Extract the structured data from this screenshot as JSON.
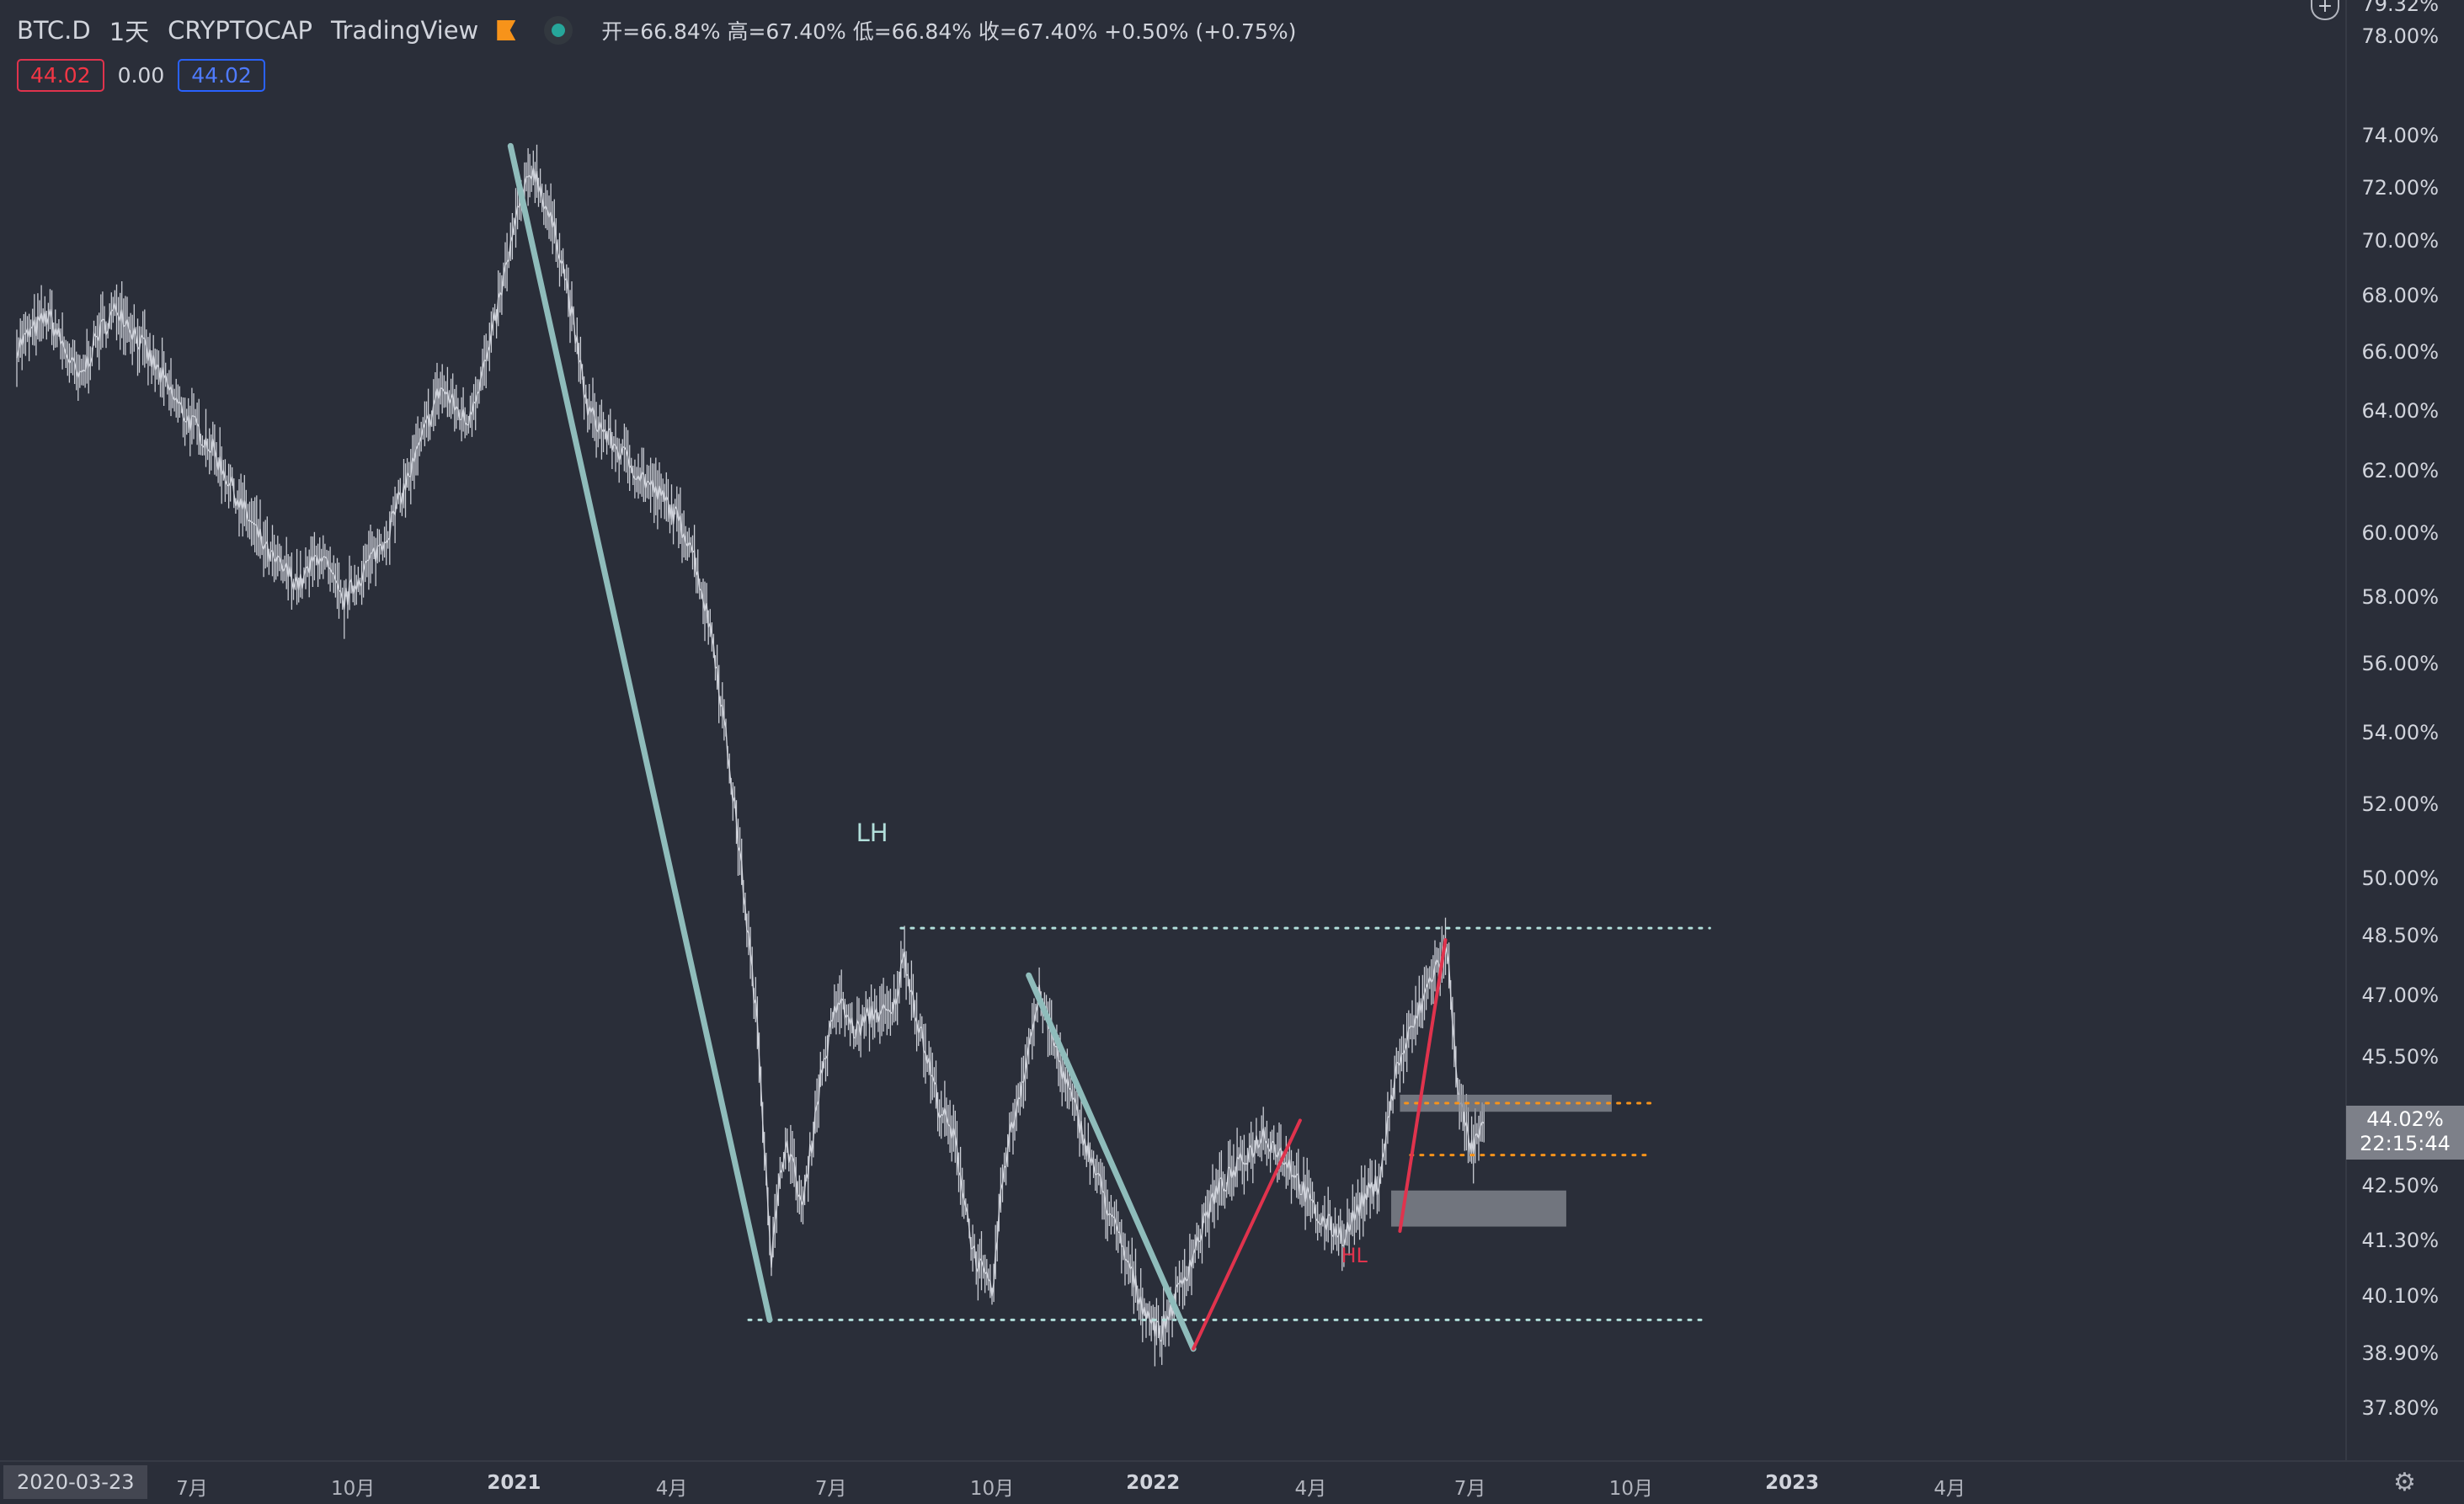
{
  "header": {
    "symbol": "BTC.D",
    "interval": "1天",
    "exchange": "CRYPTOCAP",
    "source": "TradingView",
    "ohlc": "开=66.84% 高=67.40% 低=66.84% 收=67.40% +0.50% (+0.75%)",
    "indicator_values": [
      "44.02",
      "0.00",
      "44.02"
    ]
  },
  "price_tag": {
    "value": "44.02%",
    "countdown": "22:15:44"
  },
  "cursor_date": "2020-03-23",
  "icons": {
    "flag": "flag-icon",
    "status": "status-dot-icon",
    "zoom": "plus-icon",
    "settings": "gear-icon"
  },
  "colors": {
    "background": "#2a2e39",
    "candles": "#d1d4dc",
    "downtrend_lines": "#8fbcbb",
    "uptrend_lines": "#e0334d",
    "levels": "#b2dfdb",
    "orange_levels": "#f7931a",
    "zones": "#8a8d96"
  },
  "chart_data": {
    "type": "line",
    "title": "",
    "xlabel": "",
    "ylabel": "",
    "y_scale": "log",
    "ylim": [
      37.0,
      79.5
    ],
    "x_ticks": [
      {
        "label": "7月",
        "date": "2020-07-01",
        "bold": false
      },
      {
        "label": "10月",
        "date": "2020-10-01",
        "bold": false
      },
      {
        "label": "2021",
        "date": "2021-01-01",
        "bold": true
      },
      {
        "label": "4月",
        "date": "2021-04-01",
        "bold": false
      },
      {
        "label": "7月",
        "date": "2021-07-01",
        "bold": false
      },
      {
        "label": "10月",
        "date": "2021-10-01",
        "bold": false
      },
      {
        "label": "2022",
        "date": "2022-01-01",
        "bold": true
      },
      {
        "label": "4月",
        "date": "2022-04-01",
        "bold": false
      },
      {
        "label": "7月",
        "date": "2022-07-01",
        "bold": false
      },
      {
        "label": "10月",
        "date": "2022-10-01",
        "bold": false
      },
      {
        "label": "2023",
        "date": "2023-01-01",
        "bold": true
      },
      {
        "label": "4月",
        "date": "2023-04-01",
        "bold": false
      }
    ],
    "y_ticks": [
      {
        "label": "79.32%",
        "value": 79.32
      },
      {
        "label": "78.00%",
        "value": 78.0
      },
      {
        "label": "74.00%",
        "value": 74.0
      },
      {
        "label": "72.00%",
        "value": 72.0
      },
      {
        "label": "70.00%",
        "value": 70.0
      },
      {
        "label": "68.00%",
        "value": 68.0
      },
      {
        "label": "66.00%",
        "value": 66.0
      },
      {
        "label": "64.00%",
        "value": 64.0
      },
      {
        "label": "62.00%",
        "value": 62.0
      },
      {
        "label": "60.00%",
        "value": 60.0
      },
      {
        "label": "58.00%",
        "value": 58.0
      },
      {
        "label": "56.00%",
        "value": 56.0
      },
      {
        "label": "54.00%",
        "value": 54.0
      },
      {
        "label": "52.00%",
        "value": 52.0
      },
      {
        "label": "50.00%",
        "value": 50.0
      },
      {
        "label": "48.50%",
        "value": 48.5
      },
      {
        "label": "47.00%",
        "value": 47.0
      },
      {
        "label": "45.50%",
        "value": 45.5
      },
      {
        "label": "42.50%",
        "value": 42.5
      },
      {
        "label": "41.30%",
        "value": 41.3
      },
      {
        "label": "40.10%",
        "value": 40.1
      },
      {
        "label": "38.90%",
        "value": 38.9
      },
      {
        "label": "37.80%",
        "value": 37.8
      }
    ],
    "series": [
      {
        "x": [
          "2020-03-23",
          "2020-04-10",
          "2020-04-28",
          "2020-05-08",
          "2020-05-20",
          "2020-06-05",
          "2020-06-25",
          "2020-07-12",
          "2020-07-28",
          "2020-08-15",
          "2020-09-01",
          "2020-09-12",
          "2020-09-25",
          "2020-10-08",
          "2020-10-20",
          "2020-11-05",
          "2020-11-20",
          "2020-12-05",
          "2020-12-18",
          "2021-01-03",
          "2021-01-12",
          "2021-01-28",
          "2021-02-12",
          "2021-02-28",
          "2021-03-15",
          "2021-03-30",
          "2021-04-12",
          "2021-04-25",
          "2021-05-08",
          "2021-05-20",
          "2021-05-28",
          "2021-06-05",
          "2021-06-15",
          "2021-06-25",
          "2021-07-05",
          "2021-07-15",
          "2021-07-25",
          "2021-08-05",
          "2021-08-12",
          "2021-08-20",
          "2021-09-01",
          "2021-09-10",
          "2021-09-20",
          "2021-10-01",
          "2021-10-08",
          "2021-10-18",
          "2021-10-28",
          "2021-11-10",
          "2021-11-25",
          "2021-12-10",
          "2021-12-25",
          "2022-01-05",
          "2022-01-20",
          "2022-02-05",
          "2022-02-20",
          "2022-03-05",
          "2022-03-20",
          "2022-04-05",
          "2022-04-20",
          "2022-05-01",
          "2022-05-10",
          "2022-05-20",
          "2022-06-01",
          "2022-06-10",
          "2022-06-18",
          "2022-06-25",
          "2022-07-02",
          "2022-07-10"
        ],
        "values": [
          66.2,
          67.3,
          65.0,
          66.6,
          67.6,
          66.0,
          64.0,
          62.8,
          61.0,
          59.2,
          58.4,
          59.4,
          57.8,
          58.9,
          59.9,
          62.3,
          64.8,
          63.6,
          66.1,
          71.0,
          72.8,
          69.5,
          64.0,
          62.8,
          61.8,
          60.9,
          59.7,
          56.6,
          51.5,
          46.2,
          40.9,
          43.6,
          42.0,
          45.0,
          46.9,
          46.1,
          46.6,
          46.5,
          48.0,
          46.3,
          44.3,
          43.5,
          41.1,
          40.1,
          43.0,
          44.9,
          47.0,
          45.2,
          43.3,
          41.6,
          40.0,
          39.3,
          40.6,
          42.3,
          43.0,
          43.7,
          43.0,
          41.8,
          41.4,
          42.2,
          42.6,
          45.2,
          46.5,
          47.6,
          48.1,
          44.4,
          43.3,
          43.9
        ]
      }
    ],
    "annotations": [
      {
        "label": "LH",
        "date": "2021-07-25",
        "value": 51.2,
        "color": "#b2dfdb"
      },
      {
        "label": "HL",
        "date": "2022-04-28",
        "value": 40.9,
        "color": "#e0334d"
      }
    ],
    "horizontal_levels": [
      {
        "value": 48.7,
        "from": "2021-08-10",
        "to": "2022-11-15",
        "style": "dotted",
        "color": "#b2dfdb"
      },
      {
        "value": 39.6,
        "from": "2021-05-15",
        "to": "2022-11-10",
        "style": "dotted",
        "color": "#b2dfdb"
      },
      {
        "value": 44.4,
        "from": "2022-05-25",
        "to": "2022-10-15",
        "style": "dotted",
        "color": "#f7931a"
      },
      {
        "value": 43.2,
        "from": "2022-05-28",
        "to": "2022-10-12",
        "style": "dotted",
        "color": "#f7931a"
      }
    ],
    "trend_lines": [
      {
        "from": [
          "2020-12-30",
          73.6
        ],
        "to": [
          "2021-05-27",
          39.6
        ],
        "color": "#8fbcbb"
      },
      {
        "from": [
          "2021-10-22",
          47.5
        ],
        "to": [
          "2022-01-24",
          39.0
        ],
        "color": "#8fbcbb"
      },
      {
        "from": [
          "2022-01-24",
          39.0
        ],
        "to": [
          "2022-03-26",
          44.0
        ],
        "color": "#e0334d"
      },
      {
        "from": [
          "2022-05-22",
          41.5
        ],
        "to": [
          "2022-06-17",
          48.4
        ],
        "color": "#e0334d"
      }
    ],
    "zones": [
      {
        "from": "2022-05-22",
        "to": "2022-09-20",
        "low": 44.2,
        "high": 44.6
      },
      {
        "from": "2022-05-17",
        "to": "2022-08-25",
        "low": 41.6,
        "high": 42.4
      }
    ]
  }
}
